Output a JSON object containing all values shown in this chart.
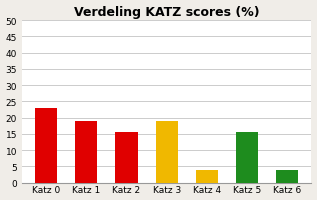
{
  "title": "Verdeling KATZ scores (%)",
  "categories": [
    "Katz 0",
    "Katz 1",
    "Katz 2",
    "Katz 3",
    "Katz 4",
    "Katz 5",
    "Katz 6"
  ],
  "values": [
    23,
    19,
    15.5,
    19,
    4,
    15.5,
    4
  ],
  "bar_colors": [
    "#e00000",
    "#e00000",
    "#e00000",
    "#f0b800",
    "#f0b800",
    "#1e8c1e",
    "#1e8c1e"
  ],
  "ylim": [
    0,
    50
  ],
  "yticks": [
    0,
    5,
    10,
    15,
    20,
    25,
    30,
    35,
    40,
    45,
    50
  ],
  "fig_background": "#f0ede8",
  "plot_background": "#ffffff",
  "title_fontsize": 9,
  "tick_fontsize": 6.5,
  "bar_width": 0.55,
  "grid_color": "#cccccc",
  "grid_linewidth": 0.7
}
